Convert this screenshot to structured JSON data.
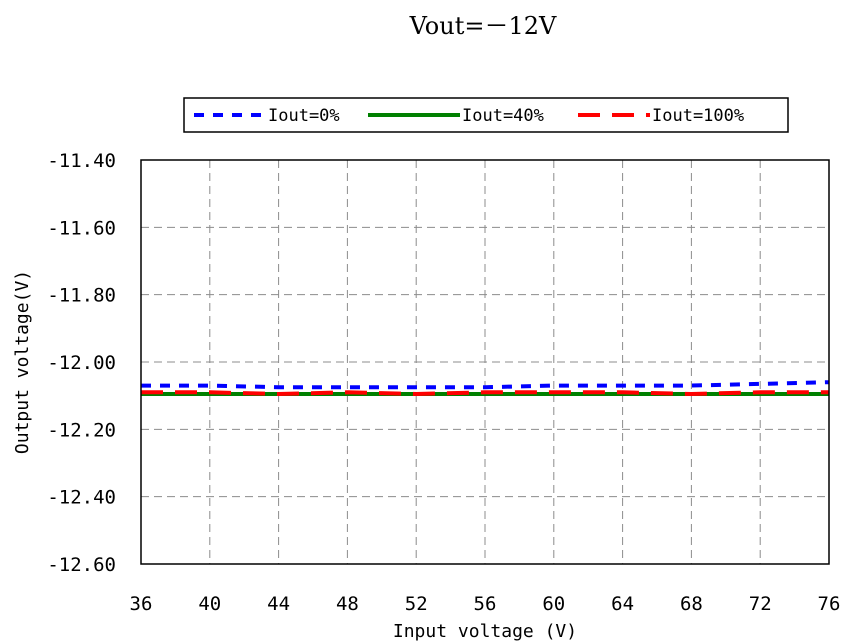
{
  "chart_data": {
    "type": "line",
    "title": "Vout=－12V",
    "xlabel": "Input voltage (V)",
    "ylabel": "Output voltage(V)",
    "xlim": [
      36,
      76
    ],
    "ylim": [
      -12.6,
      -11.4
    ],
    "xticks": [
      "36",
      "40",
      "44",
      "48",
      "52",
      "56",
      "60",
      "64",
      "68",
      "72",
      "76"
    ],
    "yticks": [
      "-11.40",
      "-11.60",
      "-11.80",
      "-12.00",
      "-12.20",
      "-12.40",
      "-12.60"
    ],
    "grid": true,
    "legend_position": "top",
    "x": [
      36,
      40,
      44,
      48,
      52,
      56,
      60,
      64,
      68,
      72,
      76
    ],
    "series": [
      {
        "name": "Iout=0%",
        "color": "#0000ff",
        "style": "short-dash",
        "values": [
          -12.07,
          -12.07,
          -12.075,
          -12.075,
          -12.075,
          -12.075,
          -12.07,
          -12.07,
          -12.07,
          -12.065,
          -12.06
        ]
      },
      {
        "name": "Iout=40%",
        "color": "#008000",
        "style": "solid",
        "values": [
          -12.095,
          -12.095,
          -12.095,
          -12.095,
          -12.095,
          -12.095,
          -12.095,
          -12.095,
          -12.095,
          -12.095,
          -12.095
        ]
      },
      {
        "name": "Iout=100%",
        "color": "#ff0000",
        "style": "long-dash",
        "values": [
          -12.09,
          -12.09,
          -12.095,
          -12.09,
          -12.095,
          -12.09,
          -12.09,
          -12.09,
          -12.095,
          -12.09,
          -12.09
        ]
      }
    ]
  }
}
